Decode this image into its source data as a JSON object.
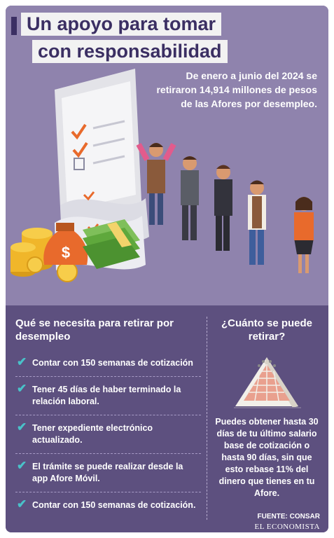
{
  "header": {
    "title_line1": "Un apoyo para tomar",
    "title_line2": "con responsabilidad"
  },
  "intro": {
    "text": "De enero a junio del 2024 se retiraron 14,914 millones de pesos de las Afores por desempleo."
  },
  "illustration": {
    "icons": [
      "document-stack-icon",
      "money-bag-icon",
      "coin-stack-icon",
      "banknote-bundle-icon",
      "worried-person-icon",
      "queue-of-people-icon"
    ]
  },
  "requirements": {
    "title": "Qué se necesita para retirar por desempleo",
    "items": [
      "Contar con 150 semanas de cotización",
      "Tener 45 días de haber terminado la relación laboral.",
      "Tener expediente electrónico actualizado.",
      "El trámite se puede realizar desde la app Afore Móvil.",
      "Contar con 150 semanas de cotización."
    ]
  },
  "amount": {
    "title": "¿Cuánto se puede retirar?",
    "icon": "desk-calendar-icon",
    "text": "Puedes obtener hasta 30 días de tu último salario base de cotización o hasta 90 días, sin que esto rebase 11% del dinero que tienes en tu Afore."
  },
  "footer": {
    "source": "FUENTE: CONSAR",
    "brand": "EL ECONOMISTA"
  },
  "colors": {
    "top_bg": "#8f83ad",
    "bottom_bg": "#5d507f",
    "title_text": "#3b2f63",
    "check": "#49c2c9",
    "accent_orange": "#e86a2c"
  }
}
